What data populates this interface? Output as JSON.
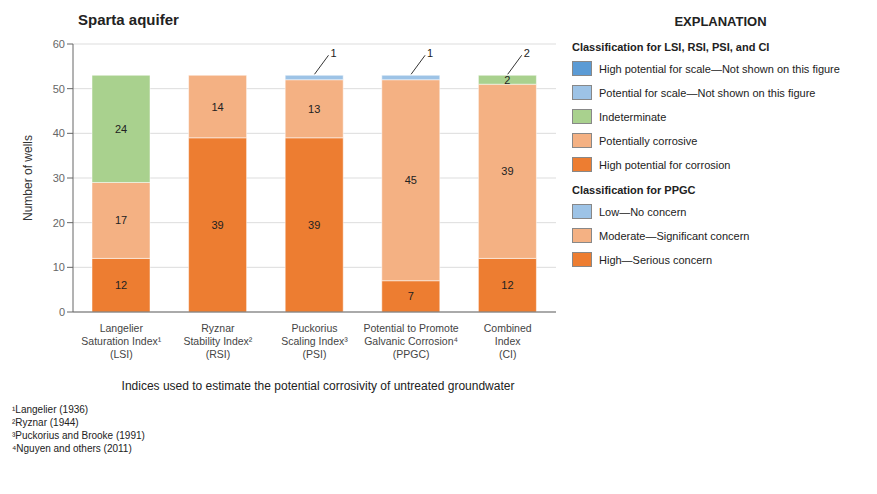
{
  "chart_data": {
    "type": "bar",
    "stacked": true,
    "title": "Sparta aquifer",
    "xlabel": "Indices used to estimate the potential corrosivity of untreated groundwater",
    "ylabel": "Number of wells",
    "categories": [
      "Langelier\nSaturation Index¹\n(LSI)",
      "Ryznar\nStability Index²\n(RSI)",
      "Puckorius\nScaling Index³\n(PSI)",
      "Potential to Promote\nGalvanic Corrosion⁴\n(PPGC)",
      "Combined\nIndex\n(CI)"
    ],
    "series": [
      {
        "name": "High potential for corrosion",
        "color": "#ed7d31",
        "values": [
          12,
          39,
          39,
          7,
          12
        ]
      },
      {
        "name": "Potentially corrosive",
        "color": "#f4b183",
        "values": [
          17,
          14,
          13,
          45,
          39
        ]
      },
      {
        "name": "Indeterminate",
        "color": "#a9d18e",
        "values": [
          24,
          0,
          0,
          0,
          2
        ]
      },
      {
        "name": "Potential for scale—Not shown on this figure",
        "color": "#9dc3e6",
        "values": [
          0,
          0,
          1,
          1,
          0
        ]
      },
      {
        "name": "High potential for scale—Not shown on this figure",
        "color": "#5b9bd5",
        "values": [
          0,
          0,
          0,
          0,
          0
        ]
      }
    ],
    "ylim": [
      0,
      60
    ],
    "yticks": [
      0,
      10,
      20,
      30,
      40,
      50,
      60
    ],
    "grid": true,
    "data_labels": true,
    "annotations": [
      {
        "category": "Puckorius\nScaling Index³\n(PSI)",
        "text": "1"
      },
      {
        "category": "Potential to Promote\nGalvanic Corrosion⁴\n(PPGC)",
        "text": "1"
      },
      {
        "category": "Combined\nIndex\n(CI)",
        "text": "2"
      }
    ],
    "footnotes": [
      "¹Langelier (1936)",
      "²Ryznar (1944)",
      "³Puckorius and Brooke (1991)",
      "⁴Nguyen and others (2011)"
    ],
    "legend_title": "EXPLANATION",
    "legend_groups": [
      {
        "header": "Classification for LSI, RSI, PSI, and CI"
      },
      {
        "header": "Classification for PPGC",
        "items": [
          {
            "label": "Low—No concern",
            "color": "#9dc3e6"
          },
          {
            "label": "Moderate—Significant concern",
            "color": "#f4b183"
          },
          {
            "label": "High—Serious concern",
            "color": "#ed7d31"
          }
        ]
      }
    ]
  }
}
